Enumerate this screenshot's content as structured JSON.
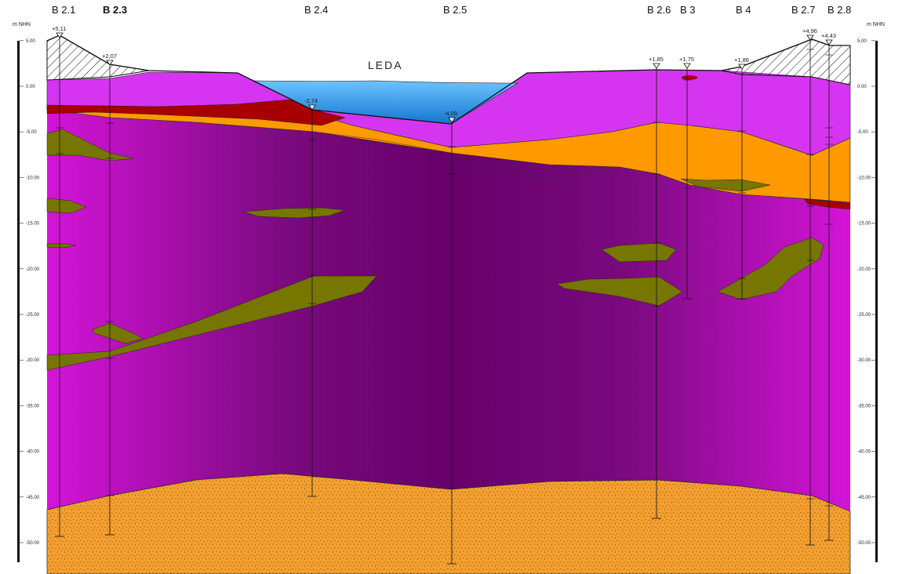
{
  "axis": {
    "unit_left": "m NHN",
    "unit_right": "m NHN",
    "ticks": [
      "5.00",
      "0.00",
      "-5.00",
      "-10.00",
      "-15.00",
      "-20.00",
      "-25.00",
      "-30.00",
      "-35.00",
      "-40.00",
      "-45.00",
      "-50.00"
    ]
  },
  "river_label": "LEDA",
  "boreholes": [
    {
      "name": "B 2.1",
      "elevation": "+5,11"
    },
    {
      "name": "B 2.3",
      "elevation": "+2,07"
    },
    {
      "name": "B 2.4",
      "elevation": "-2,74"
    },
    {
      "name": "B 2.5",
      "elevation": "-4,09"
    },
    {
      "name": "B 2.6",
      "elevation": "+1,85"
    },
    {
      "name": "B 3",
      "elevation": "+1,75"
    },
    {
      "name": "B 4",
      "elevation": "+1,86"
    },
    {
      "name": "B 2.7",
      "elevation": "+4,96"
    },
    {
      "name": "B 2.8",
      "elevation": "+4,43"
    }
  ],
  "colors": {
    "purple_top": "#d535f0",
    "magenta": "#cc10cc",
    "dark_purple": "#66006a",
    "orange": "#ff9900",
    "dark_red": "#a80000",
    "olive": "#767600",
    "water": "#2a95e8",
    "sand": "#f5a030"
  }
}
